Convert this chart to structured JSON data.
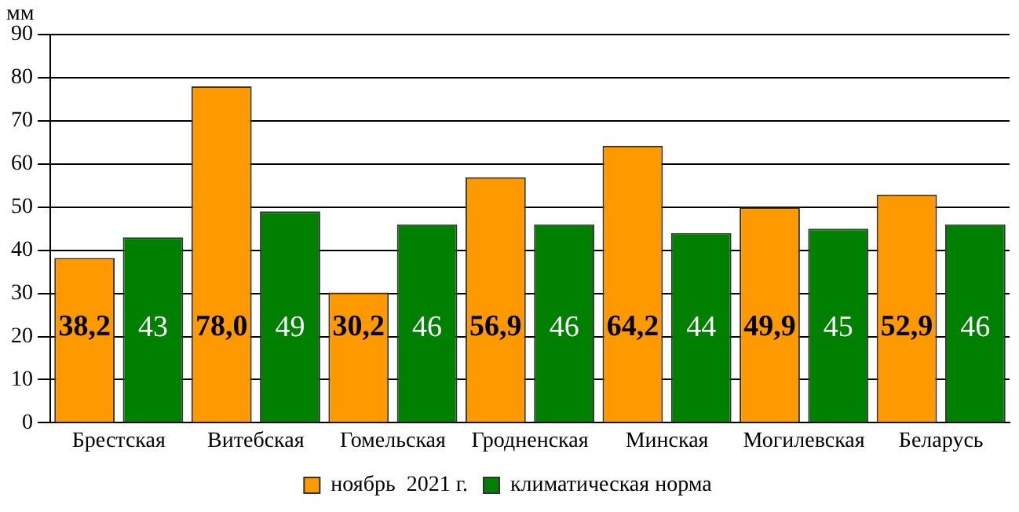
{
  "chart_data": {
    "type": "bar",
    "ylabel": "мм",
    "categories": [
      "Брестская",
      "Витебская",
      "Гомельская",
      "Гродненская",
      "Минская",
      "Могилевская",
      "Беларусь"
    ],
    "series": [
      {
        "name": "ноябрь  2021 г.",
        "color": "#ff9900",
        "values": [
          38.2,
          78.0,
          30.2,
          56.9,
          64.2,
          49.9,
          52.9
        ],
        "value_labels": [
          "38,2",
          "78,0",
          "30,2",
          "56,9",
          "64,2",
          "49,9",
          "52,9"
        ]
      },
      {
        "name": "климатическая норма",
        "color": "#008000",
        "values": [
          43,
          49,
          46,
          46,
          44,
          45,
          46
        ],
        "value_labels": [
          "43",
          "49",
          "46",
          "46",
          "44",
          "45",
          "46"
        ]
      }
    ],
    "ylim": [
      0,
      90
    ],
    "yticks": [
      0,
      10,
      20,
      30,
      40,
      50,
      60,
      70,
      80,
      90
    ],
    "grid": "y",
    "legend": "bottom"
  }
}
